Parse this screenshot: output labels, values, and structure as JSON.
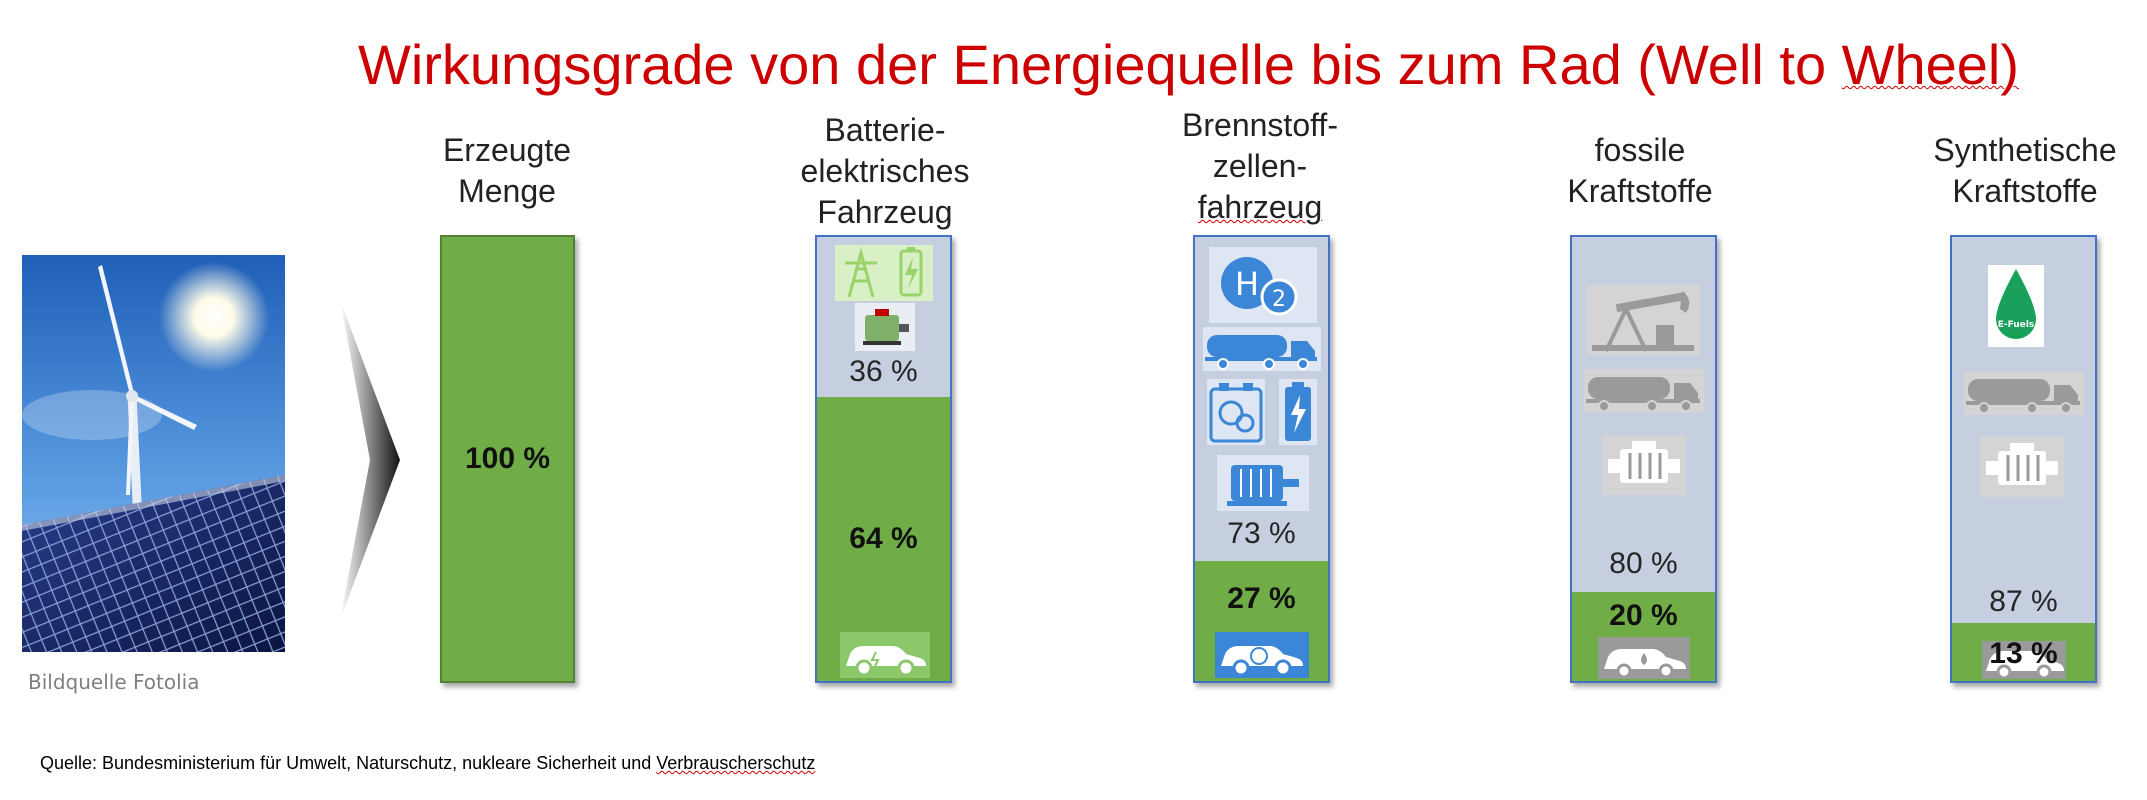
{
  "title_prefix": "Wirkungsgrade von der Energiequelle bis zum Rad (Well to ",
  "title_suffix": "Wheel)",
  "photo_credit": "Bildquelle Fotolia",
  "source_prefix": "Quelle: Bundesministerium für Umwelt, Naturschutz, nukleare Sicherheit und ",
  "source_suffix": "Verbrauscherschutz",
  "colors": {
    "title": "#cc0000",
    "bar_green": "#70ad47",
    "bar_blue_gray": "#c5cfe0",
    "bar_border": "#4472c4",
    "icon_blue": "#3b86d6",
    "icon_gray": "#9a9a9a",
    "icon_green": "#9bd36b"
  },
  "columns": [
    {
      "label_lines": [
        "Erzeugte",
        "Menge"
      ],
      "loss_label": "",
      "use_label": "100 %",
      "icons": []
    },
    {
      "label_lines": [
        "Batterie-",
        "elektrisches",
        "Fahrzeug"
      ],
      "loss_label": "36 %",
      "use_label": "64 %",
      "icons": [
        "power-pylon-icon",
        "battery-charge-icon",
        "electric-motor-icon",
        "electric-car-icon"
      ]
    },
    {
      "label_lines": [
        "Brennstoff-",
        "zellen-",
        "fahrzeug"
      ],
      "loss_label": "73 %",
      "use_label": "27 %",
      "icons": [
        "hydrogen-icon",
        "tanker-truck-icon",
        "hydrogen-tank-icon",
        "battery-icon",
        "electric-motor-icon",
        "hydrogen-car-icon"
      ]
    },
    {
      "label_lines": [
        "fossile",
        "Kraftstoffe"
      ],
      "loss_label": "80 %",
      "use_label": "20 %",
      "icons": [
        "oil-pump-icon",
        "tanker-truck-icon",
        "combustion-engine-icon",
        "fuel-car-icon"
      ]
    },
    {
      "label_lines": [
        "Synthetische",
        "Kraftstoffe"
      ],
      "loss_label": "87 %",
      "use_label": "13 %",
      "icons": [
        "e-fuels-drop-icon",
        "tanker-truck-icon",
        "combustion-engine-icon",
        "fuel-car-icon"
      ],
      "efuels_text": "E-Fuels"
    }
  ],
  "chart_data": {
    "type": "bar",
    "stacked": true,
    "categories": [
      "Erzeugte Menge",
      "Batterie-elektrisches Fahrzeug",
      "Brennstoffzellenfahrzeug",
      "fossile Kraftstoffe",
      "Synthetische Kraftstoffe"
    ],
    "series": [
      {
        "values": [
          100,
          64,
          27,
          20,
          13
        ]
      },
      {
        "values": [
          0,
          36,
          73,
          80,
          87
        ]
      }
    ],
    "ylim": [
      0,
      100
    ],
    "title": "Wirkungsgrade von der Energiequelle bis zum Rad (Well to Wheel)"
  }
}
